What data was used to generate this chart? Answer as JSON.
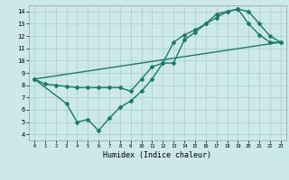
{
  "xlabel": "Humidex (Indice chaleur)",
  "bg_color": "#cce8e8",
  "grid_color": "#aacccc",
  "line_color": "#1a7a6e",
  "marker": "D",
  "markersize": 2.0,
  "linewidth": 1.0,
  "xlim": [
    -0.5,
    23.5
  ],
  "ylim": [
    3.5,
    14.5
  ],
  "xticks": [
    0,
    1,
    2,
    3,
    4,
    5,
    6,
    7,
    8,
    9,
    10,
    11,
    12,
    13,
    14,
    15,
    16,
    17,
    18,
    19,
    20,
    21,
    22,
    23
  ],
  "yticks": [
    4,
    5,
    6,
    7,
    8,
    9,
    10,
    11,
    12,
    13,
    14
  ],
  "line1_x": [
    0,
    1,
    2,
    3,
    4,
    5,
    6,
    7,
    8,
    9,
    10,
    11,
    12,
    13,
    14,
    15,
    16,
    17,
    18,
    19,
    20,
    21,
    22,
    23
  ],
  "line1_y": [
    8.5,
    8.1,
    8.0,
    7.9,
    7.8,
    7.8,
    7.8,
    7.8,
    7.8,
    7.5,
    8.5,
    9.5,
    9.8,
    11.5,
    12.1,
    12.5,
    13.0,
    13.5,
    14.0,
    14.2,
    13.0,
    12.1,
    11.5,
    11.5
  ],
  "line2_x": [
    0,
    3,
    4,
    5,
    6,
    7,
    8,
    9,
    10,
    11,
    12,
    13,
    14,
    15,
    16,
    17,
    18,
    19,
    20,
    21,
    22,
    23
  ],
  "line2_y": [
    8.5,
    6.5,
    5.0,
    5.2,
    4.3,
    5.3,
    6.2,
    6.7,
    7.5,
    8.5,
    9.8,
    9.8,
    11.7,
    12.3,
    13.0,
    13.8,
    14.0,
    14.2,
    14.0,
    13.0,
    12.0,
    11.5
  ],
  "line3_x": [
    0,
    23
  ],
  "line3_y": [
    8.5,
    11.5
  ]
}
